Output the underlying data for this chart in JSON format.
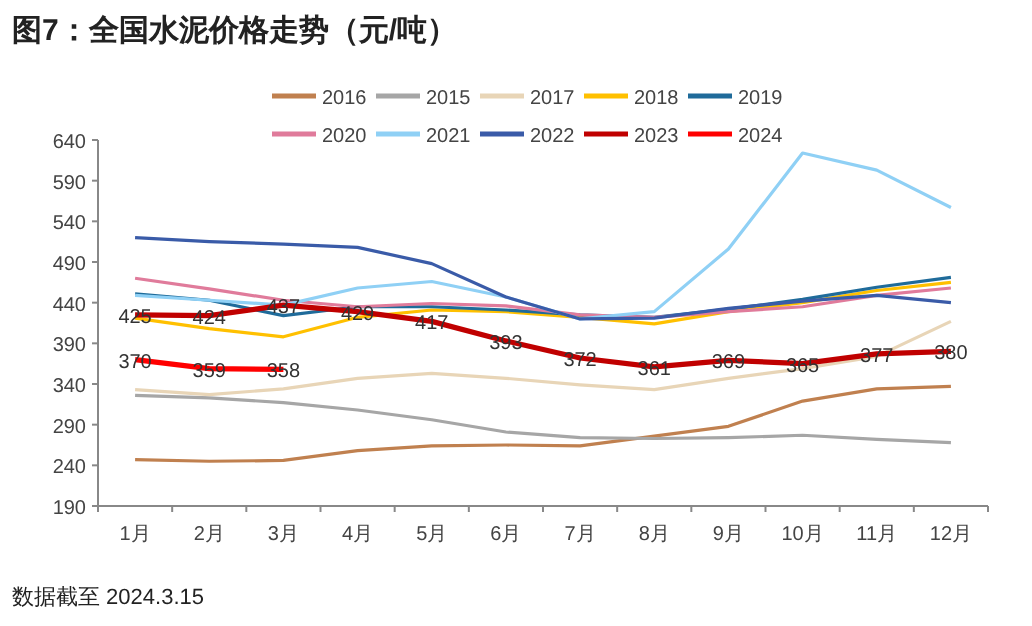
{
  "chart_data": {
    "type": "line",
    "title": "图7：全国水泥价格走势（元/吨）",
    "annotations": [
      "数据截至 2024.3.15"
    ],
    "categories": [
      "1月",
      "2月",
      "3月",
      "4月",
      "5月",
      "6月",
      "7月",
      "8月",
      "9月",
      "10月",
      "11月",
      "12月"
    ],
    "ylim": [
      190,
      640
    ],
    "yticks": [
      190,
      240,
      290,
      340,
      390,
      440,
      490,
      540,
      590,
      640
    ],
    "grid": false,
    "legend": "top",
    "marker": "none",
    "line_style": "solid",
    "series": [
      {
        "name": "2016",
        "color": "#c0804f",
        "values": [
          247,
          245,
          246,
          258,
          264,
          265,
          264,
          276,
          288,
          319,
          334,
          337
        ]
      },
      {
        "name": "2015",
        "color": "#a6a6a6",
        "values": [
          326,
          323,
          317,
          308,
          296,
          281,
          274,
          273,
          274,
          277,
          272,
          268
        ]
      },
      {
        "name": "2017",
        "color": "#e8d5b7",
        "values": [
          333,
          327,
          334,
          347,
          353,
          347,
          339,
          333,
          347,
          359,
          374,
          417
        ]
      },
      {
        "name": "2018",
        "color": "#ffc000",
        "values": [
          421,
          408,
          398,
          422,
          431,
          429,
          422,
          414,
          429,
          440,
          455,
          465
        ]
      },
      {
        "name": "2019",
        "color": "#1f6b9a",
        "values": [
          451,
          443,
          424,
          435,
          435,
          431,
          425,
          422,
          432,
          444,
          459,
          471
        ]
      },
      {
        "name": "2020",
        "color": "#e07b9b",
        "values": [
          470,
          457,
          443,
          435,
          439,
          436,
          425,
          422,
          429,
          435,
          449,
          458
        ]
      },
      {
        "name": "2021",
        "color": "#8fd0f5",
        "values": [
          449,
          443,
          437,
          458,
          466,
          447,
          420,
          429,
          506,
          624,
          603,
          557
        ]
      },
      {
        "name": "2022",
        "color": "#3a5ba8",
        "values": [
          520,
          515,
          512,
          508,
          488,
          447,
          420,
          421,
          433,
          442,
          449,
          440
        ]
      },
      {
        "name": "2023",
        "color": "#c00000",
        "values": [
          425,
          424,
          437,
          429,
          417,
          393,
          372,
          361,
          369,
          365,
          377,
          380
        ],
        "value_labels": [
          "425",
          "424",
          "437",
          "429",
          "417",
          "393",
          "372",
          "361",
          "369",
          "365",
          "377",
          "380"
        ]
      },
      {
        "name": "2024",
        "color": "#ff0000",
        "values": [
          370,
          359,
          358,
          null,
          null,
          null,
          null,
          null,
          null,
          null,
          null,
          null
        ],
        "value_labels": [
          "370",
          "359",
          "358",
          null,
          null,
          null,
          null,
          null,
          null,
          null,
          null,
          null
        ]
      }
    ]
  }
}
